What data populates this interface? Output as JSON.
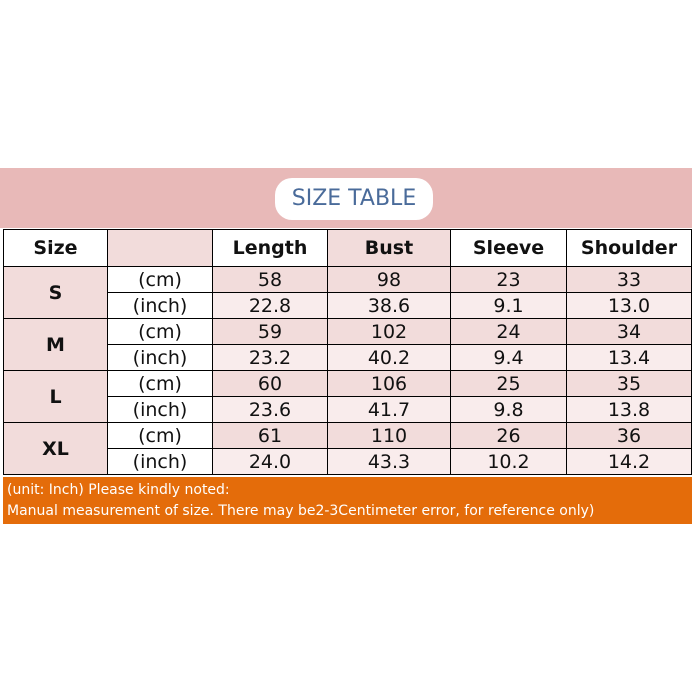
{
  "header": {
    "title": "SIZE TABLE"
  },
  "table": {
    "columns": [
      "Size",
      "Length",
      "Bust",
      "Sleeve",
      "Shoulder"
    ],
    "rows": [
      {
        "size": "S",
        "lines": [
          [
            "(cm)",
            "58",
            "98",
            "23",
            "33"
          ],
          [
            "(inch)",
            "22.8",
            "38.6",
            "9.1",
            "13.0"
          ]
        ]
      },
      {
        "size": "M",
        "lines": [
          [
            "(cm)",
            "59",
            "102",
            "24",
            "34"
          ],
          [
            "(inch)",
            "23.2",
            "40.2",
            "9.4",
            "13.4"
          ]
        ]
      },
      {
        "size": "L",
        "lines": [
          [
            "(cm)",
            "60",
            "106",
            "25",
            "35"
          ],
          [
            "(inch)",
            "23.6",
            "41.7",
            "9.8",
            "13.8"
          ]
        ]
      },
      {
        "size": "XL",
        "lines": [
          [
            "(cm)",
            "61",
            "110",
            "26",
            "36"
          ],
          [
            "(inch)",
            "24.0",
            "43.3",
            "10.2",
            "14.2"
          ]
        ]
      }
    ]
  },
  "footer": {
    "lines": [
      "(unit: Inch) Please kindly noted:",
      "Manual measurement of size. There may be2-3Centimeter error, for reference only)"
    ]
  }
}
